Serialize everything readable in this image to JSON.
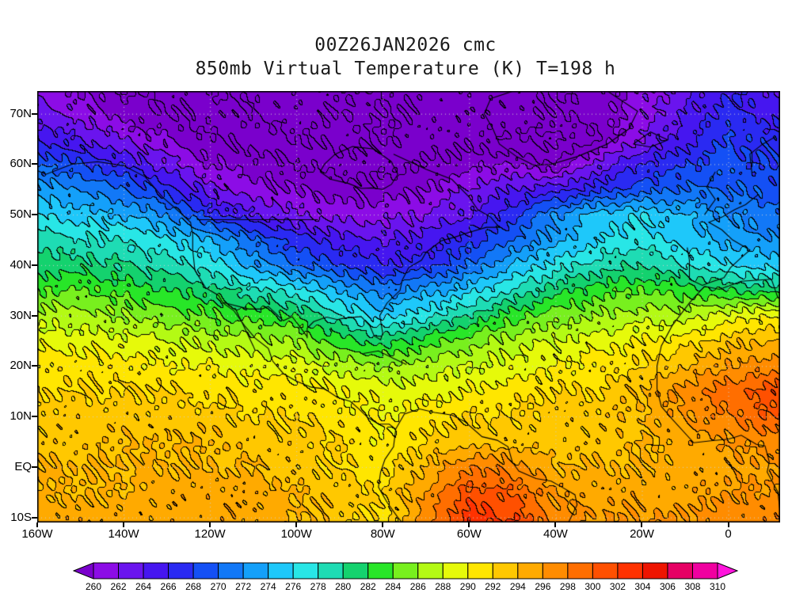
{
  "title": {
    "line1": "00Z26JAN2026 cmc",
    "line2": "850mb Virtual Temperature (K) T=198 h"
  },
  "chart_data": {
    "type": "heatmap",
    "title": "850mb Virtual Temperature (K) T=198 h",
    "subtitle": "00Z26JAN2026 cmc",
    "units": "K",
    "lon_range": [
      -160,
      12
    ],
    "lat_range": [
      -11,
      74.5
    ],
    "lon_ticks": [
      {
        "lon": -160,
        "label": "160W"
      },
      {
        "lon": -140,
        "label": "140W"
      },
      {
        "lon": -120,
        "label": "120W"
      },
      {
        "lon": -100,
        "label": "100W"
      },
      {
        "lon": -80,
        "label": "80W"
      },
      {
        "lon": -60,
        "label": "60W"
      },
      {
        "lon": -40,
        "label": "40W"
      },
      {
        "lon": -20,
        "label": "20W"
      },
      {
        "lon": 0,
        "label": "0"
      }
    ],
    "lat_ticks": [
      {
        "lat": 70,
        "label": "70N"
      },
      {
        "lat": 60,
        "label": "60N"
      },
      {
        "lat": 50,
        "label": "50N"
      },
      {
        "lat": 40,
        "label": "40N"
      },
      {
        "lat": 30,
        "label": "30N"
      },
      {
        "lat": 20,
        "label": "20N"
      },
      {
        "lat": 10,
        "label": "10N"
      },
      {
        "lat": 0,
        "label": "EQ"
      },
      {
        "lat": -10,
        "label": "10S"
      }
    ],
    "gridline_lons": [
      -140,
      -120,
      -100,
      -80,
      -60,
      -40,
      -20,
      0
    ],
    "gridline_lats": [
      70,
      60,
      50,
      40,
      30,
      20,
      10,
      0,
      -10
    ],
    "levels": {
      "min": 260,
      "max": 310,
      "step": 2,
      "labels": [
        "260",
        "262",
        "264",
        "266",
        "268",
        "270",
        "272",
        "274",
        "276",
        "278",
        "280",
        "282",
        "284",
        "286",
        "288",
        "290",
        "292",
        "294",
        "296",
        "298",
        "300",
        "302",
        "304",
        "306",
        "308",
        "310"
      ]
    },
    "colors": {
      "below": "#7a00cc",
      "bands": [
        "#8c0ce6",
        "#6a14ee",
        "#4616f0",
        "#2a2af2",
        "#1450f5",
        "#1278f7",
        "#14a0fa",
        "#1ec8fa",
        "#28e6e6",
        "#1edcb4",
        "#14d26e",
        "#28e628",
        "#78f01e",
        "#b4fa14",
        "#e6fa0a",
        "#ffe600",
        "#ffc800",
        "#ffaa00",
        "#ff8c00",
        "#ff6e00",
        "#ff5000",
        "#ff3200",
        "#ee1400",
        "#e60064",
        "#f000a0"
      ],
      "above": "#ff14dc",
      "contour": "#000000",
      "gridline": "#cfcfcf"
    },
    "grid": {
      "lons": [
        -160,
        -150,
        -140,
        -130,
        -120,
        -110,
        -100,
        -90,
        -80,
        -70,
        -60,
        -50,
        -40,
        -30,
        -20,
        -10,
        0,
        10
      ],
      "lats": [
        75,
        70,
        65,
        60,
        55,
        50,
        45,
        40,
        35,
        30,
        25,
        20,
        15,
        10,
        5,
        0,
        -5,
        -10
      ],
      "values": [
        [
          261,
          260,
          258,
          257,
          256,
          255,
          255,
          255,
          256,
          257,
          257,
          257,
          258,
          259,
          261,
          263,
          266,
          264
        ],
        [
          263,
          261,
          259,
          258,
          257,
          256,
          255,
          256,
          256,
          257,
          257,
          257,
          258,
          259,
          261,
          264,
          267,
          265
        ],
        [
          266,
          264,
          262,
          260,
          258,
          257,
          256,
          255,
          256,
          257,
          257,
          256,
          255,
          258,
          262,
          265,
          268,
          267
        ],
        [
          270,
          268,
          266,
          263,
          260,
          259,
          258,
          257,
          257,
          258,
          259,
          260,
          258,
          263,
          266,
          268,
          269,
          268
        ],
        [
          273,
          272,
          270,
          267,
          263,
          261,
          260,
          259,
          259,
          260,
          262,
          264,
          265,
          267,
          269,
          270,
          270,
          269
        ],
        [
          276,
          275,
          274,
          272,
          267,
          264,
          262,
          261,
          261,
          262,
          264,
          267,
          272,
          275,
          276,
          274,
          272,
          271
        ],
        [
          279,
          278,
          278,
          276,
          274,
          270,
          267,
          265,
          264,
          265,
          267,
          270,
          273,
          276,
          277,
          275,
          273,
          272
        ],
        [
          281,
          281,
          280,
          279,
          277,
          273,
          270,
          268,
          266,
          267,
          270,
          274,
          277,
          279,
          280,
          278,
          276,
          275
        ],
        [
          284,
          284,
          283,
          282,
          281,
          279,
          277,
          274,
          271,
          273,
          275,
          278,
          281,
          283,
          284,
          283,
          282,
          281
        ],
        [
          287,
          287,
          286,
          285,
          284,
          283,
          282,
          278,
          275,
          277,
          280,
          283,
          285,
          286,
          287,
          287,
          289,
          290
        ],
        [
          289,
          289,
          289,
          288,
          287,
          287,
          286,
          283,
          281,
          283,
          285,
          287,
          288,
          289,
          290,
          291,
          293,
          294
        ],
        [
          291,
          291,
          291,
          290,
          290,
          289,
          289,
          287,
          286,
          287,
          288,
          289,
          290,
          291,
          292,
          294,
          296,
          297
        ],
        [
          292,
          292,
          292,
          292,
          291,
          291,
          291,
          290,
          289,
          289,
          290,
          291,
          292,
          292,
          294,
          297,
          299,
          301
        ],
        [
          293,
          293,
          293,
          293,
          293,
          292,
          292,
          291,
          290,
          291,
          292,
          292,
          293,
          293,
          294,
          296,
          298,
          300
        ],
        [
          293,
          293,
          294,
          294,
          294,
          293,
          293,
          292,
          290,
          292,
          293,
          293,
          293,
          293,
          294,
          295,
          296,
          297
        ],
        [
          294,
          294,
          294,
          294,
          294,
          294,
          293,
          292,
          291,
          294,
          298,
          297,
          294,
          294,
          294,
          295,
          295,
          296
        ],
        [
          294,
          294,
          294,
          295,
          295,
          295,
          294,
          293,
          292,
          296,
          301,
          300,
          296,
          295,
          295,
          295,
          296,
          296
        ],
        [
          295,
          295,
          295,
          295,
          295,
          295,
          294,
          293,
          291,
          297,
          303,
          302,
          297,
          296,
          296,
          296,
          297,
          297
        ]
      ]
    },
    "coastlines": [
      [
        [
          -166,
          68
        ],
        [
          -164,
          65
        ],
        [
          -166,
          61
        ],
        [
          -158,
          58
        ],
        [
          -152,
          60
        ],
        [
          -146,
          60.5
        ],
        [
          -140,
          59.7
        ],
        [
          -135,
          57.5
        ],
        [
          -131,
          53.5
        ],
        [
          -127,
          50.5
        ],
        [
          -124.5,
          48.5
        ],
        [
          -124,
          46
        ],
        [
          -124,
          43
        ],
        [
          -123.5,
          39
        ],
        [
          -121,
          35.5
        ],
        [
          -118,
          34
        ],
        [
          -117,
          32.5
        ],
        [
          -114.5,
          31
        ],
        [
          -112,
          28
        ],
        [
          -109.5,
          25.5
        ],
        [
          -106.5,
          23.5
        ],
        [
          -105.5,
          21
        ],
        [
          -103,
          18.5
        ],
        [
          -100,
          17
        ],
        [
          -96.5,
          15.8
        ],
        [
          -93.5,
          15.5
        ],
        [
          -90.5,
          13.8
        ],
        [
          -87.5,
          13
        ],
        [
          -85.5,
          11.5
        ],
        [
          -83.5,
          9.8
        ],
        [
          -81,
          8.5
        ],
        [
          -78.5,
          8.5
        ],
        [
          -77,
          7.5
        ]
      ],
      [
        [
          -77,
          7.5
        ],
        [
          -77.5,
          4
        ],
        [
          -79.5,
          1.5
        ],
        [
          -80.5,
          -1
        ],
        [
          -81,
          -4
        ],
        [
          -79,
          -7
        ],
        [
          -76.5,
          -10
        ],
        [
          -75.5,
          -11
        ]
      ],
      [
        [
          -77,
          7.5
        ],
        [
          -75,
          10.5
        ],
        [
          -71.5,
          11.5
        ],
        [
          -68,
          10.8
        ],
        [
          -64,
          10.3
        ],
        [
          -61,
          9
        ],
        [
          -57,
          6
        ],
        [
          -53.5,
          5.3
        ],
        [
          -51,
          4
        ],
        [
          -50,
          1
        ],
        [
          -48.5,
          -0.8
        ],
        [
          -44.5,
          -2.3
        ],
        [
          -41,
          -2.8
        ],
        [
          -38.5,
          -4
        ],
        [
          -35.5,
          -5.5
        ],
        [
          -35,
          -7.5
        ],
        [
          -37,
          -11
        ]
      ],
      [
        [
          -97.5,
          25.5
        ],
        [
          -97.5,
          27.5
        ],
        [
          -96,
          28.8
        ],
        [
          -93,
          29.7
        ],
        [
          -90.5,
          29.2
        ],
        [
          -89,
          29.5
        ],
        [
          -85,
          29.8
        ],
        [
          -83,
          28
        ],
        [
          -82,
          26
        ],
        [
          -80.5,
          25.2
        ],
        [
          -80,
          26.5
        ],
        [
          -80.7,
          30
        ],
        [
          -79,
          32.5
        ],
        [
          -76,
          35
        ],
        [
          -75.5,
          37
        ],
        [
          -74,
          39.5
        ],
        [
          -71,
          41
        ],
        [
          -70,
          42.5
        ],
        [
          -66.5,
          44.8
        ],
        [
          -63.5,
          45.5
        ],
        [
          -60,
          46.5
        ],
        [
          -56,
          47.5
        ],
        [
          -53,
          47.5
        ],
        [
          -55,
          49.5
        ],
        [
          -58,
          51
        ],
        [
          -60,
          53.5
        ],
        [
          -64,
          57
        ],
        [
          -70,
          59
        ],
        [
          -77.5,
          62
        ]
      ],
      [
        [
          -94.5,
          58.5
        ],
        [
          -92,
          57
        ],
        [
          -88,
          56.2
        ],
        [
          -85,
          55.2
        ],
        [
          -82.5,
          55.3
        ],
        [
          -80,
          55
        ],
        [
          -78,
          56
        ],
        [
          -76.5,
          58
        ],
        [
          -78,
          60.5
        ],
        [
          -82,
          63
        ],
        [
          -87,
          63.5
        ],
        [
          -91,
          62
        ],
        [
          -93.5,
          60
        ],
        [
          -94.5,
          58.5
        ]
      ],
      [
        [
          -45,
          59.8
        ],
        [
          -49,
          61.5
        ],
        [
          -53,
          64
        ],
        [
          -54.5,
          67
        ],
        [
          -56.5,
          70
        ],
        [
          -55,
          73
        ],
        [
          -48,
          75
        ],
        [
          -38,
          76
        ],
        [
          -28,
          74.5
        ],
        [
          -21,
          70.5
        ],
        [
          -23,
          67
        ],
        [
          -28,
          64
        ],
        [
          -35,
          61.5
        ],
        [
          -41,
          60
        ],
        [
          -45,
          59.8
        ]
      ],
      [
        [
          -114.2,
          31.5
        ],
        [
          -112.5,
          28.5
        ],
        [
          -110,
          24
        ],
        [
          -109.5,
          23
        ]
      ],
      [
        [
          -84.5,
          22.5
        ],
        [
          -81,
          23
        ],
        [
          -77.5,
          21.5
        ],
        [
          -74.5,
          20.3
        ]
      ],
      [
        [
          -22,
          64
        ],
        [
          -18,
          63.4
        ],
        [
          -14,
          64.8
        ],
        [
          -18,
          66.4
        ],
        [
          -22,
          64
        ]
      ],
      [
        [
          -5.5,
          50
        ],
        [
          -3,
          53
        ],
        [
          -5,
          55.5
        ],
        [
          -3,
          58.5
        ]
      ],
      [
        [
          -9.5,
          43.5
        ],
        [
          -9,
          41
        ],
        [
          -9,
          37.2
        ],
        [
          -6,
          36
        ],
        [
          -4.5,
          36.5
        ],
        [
          -1,
          37.5
        ],
        [
          0.5,
          39.5
        ],
        [
          3,
          41.5
        ],
        [
          5,
          43
        ],
        [
          1,
          45
        ],
        [
          -1.5,
          47
        ],
        [
          -4.5,
          48.5
        ],
        [
          -1.5,
          49.5
        ],
        [
          1.5,
          51
        ],
        [
          4,
          52
        ],
        [
          7,
          54
        ]
      ],
      [
        [
          5.5,
          58
        ],
        [
          5,
          62
        ],
        [
          8,
          64
        ],
        [
          11,
          65.5
        ]
      ],
      [
        [
          -5.5,
          35.8
        ],
        [
          -2,
          35.2
        ],
        [
          3,
          36.8
        ],
        [
          10,
          37.2
        ],
        [
          11.5,
          33.5
        ]
      ],
      [
        [
          -5.5,
          35.8
        ],
        [
          -9,
          32.5
        ],
        [
          -13,
          28
        ],
        [
          -15.5,
          24
        ],
        [
          -16.5,
          20
        ],
        [
          -16.5,
          15.5
        ],
        [
          -15.5,
          12
        ],
        [
          -13,
          9.5
        ],
        [
          -8,
          4.8
        ],
        [
          -4,
          5.2
        ],
        [
          0,
          5.5
        ],
        [
          3,
          6.3
        ],
        [
          6.5,
          4.5
        ],
        [
          8.5,
          4.2
        ],
        [
          9.5,
          1
        ],
        [
          9,
          -1
        ],
        [
          11.5,
          -5
        ],
        [
          12,
          -9
        ]
      ],
      [
        [
          -123,
          49
        ],
        [
          -95,
          49
        ]
      ],
      [
        [
          -117,
          32.6
        ],
        [
          -111,
          31.3
        ],
        [
          -108,
          31.3
        ],
        [
          -106.5,
          31.8
        ],
        [
          -103,
          29
        ],
        [
          -101,
          29.8
        ],
        [
          -99,
          27.6
        ],
        [
          -97.5,
          25.8
        ]
      ]
    ]
  }
}
